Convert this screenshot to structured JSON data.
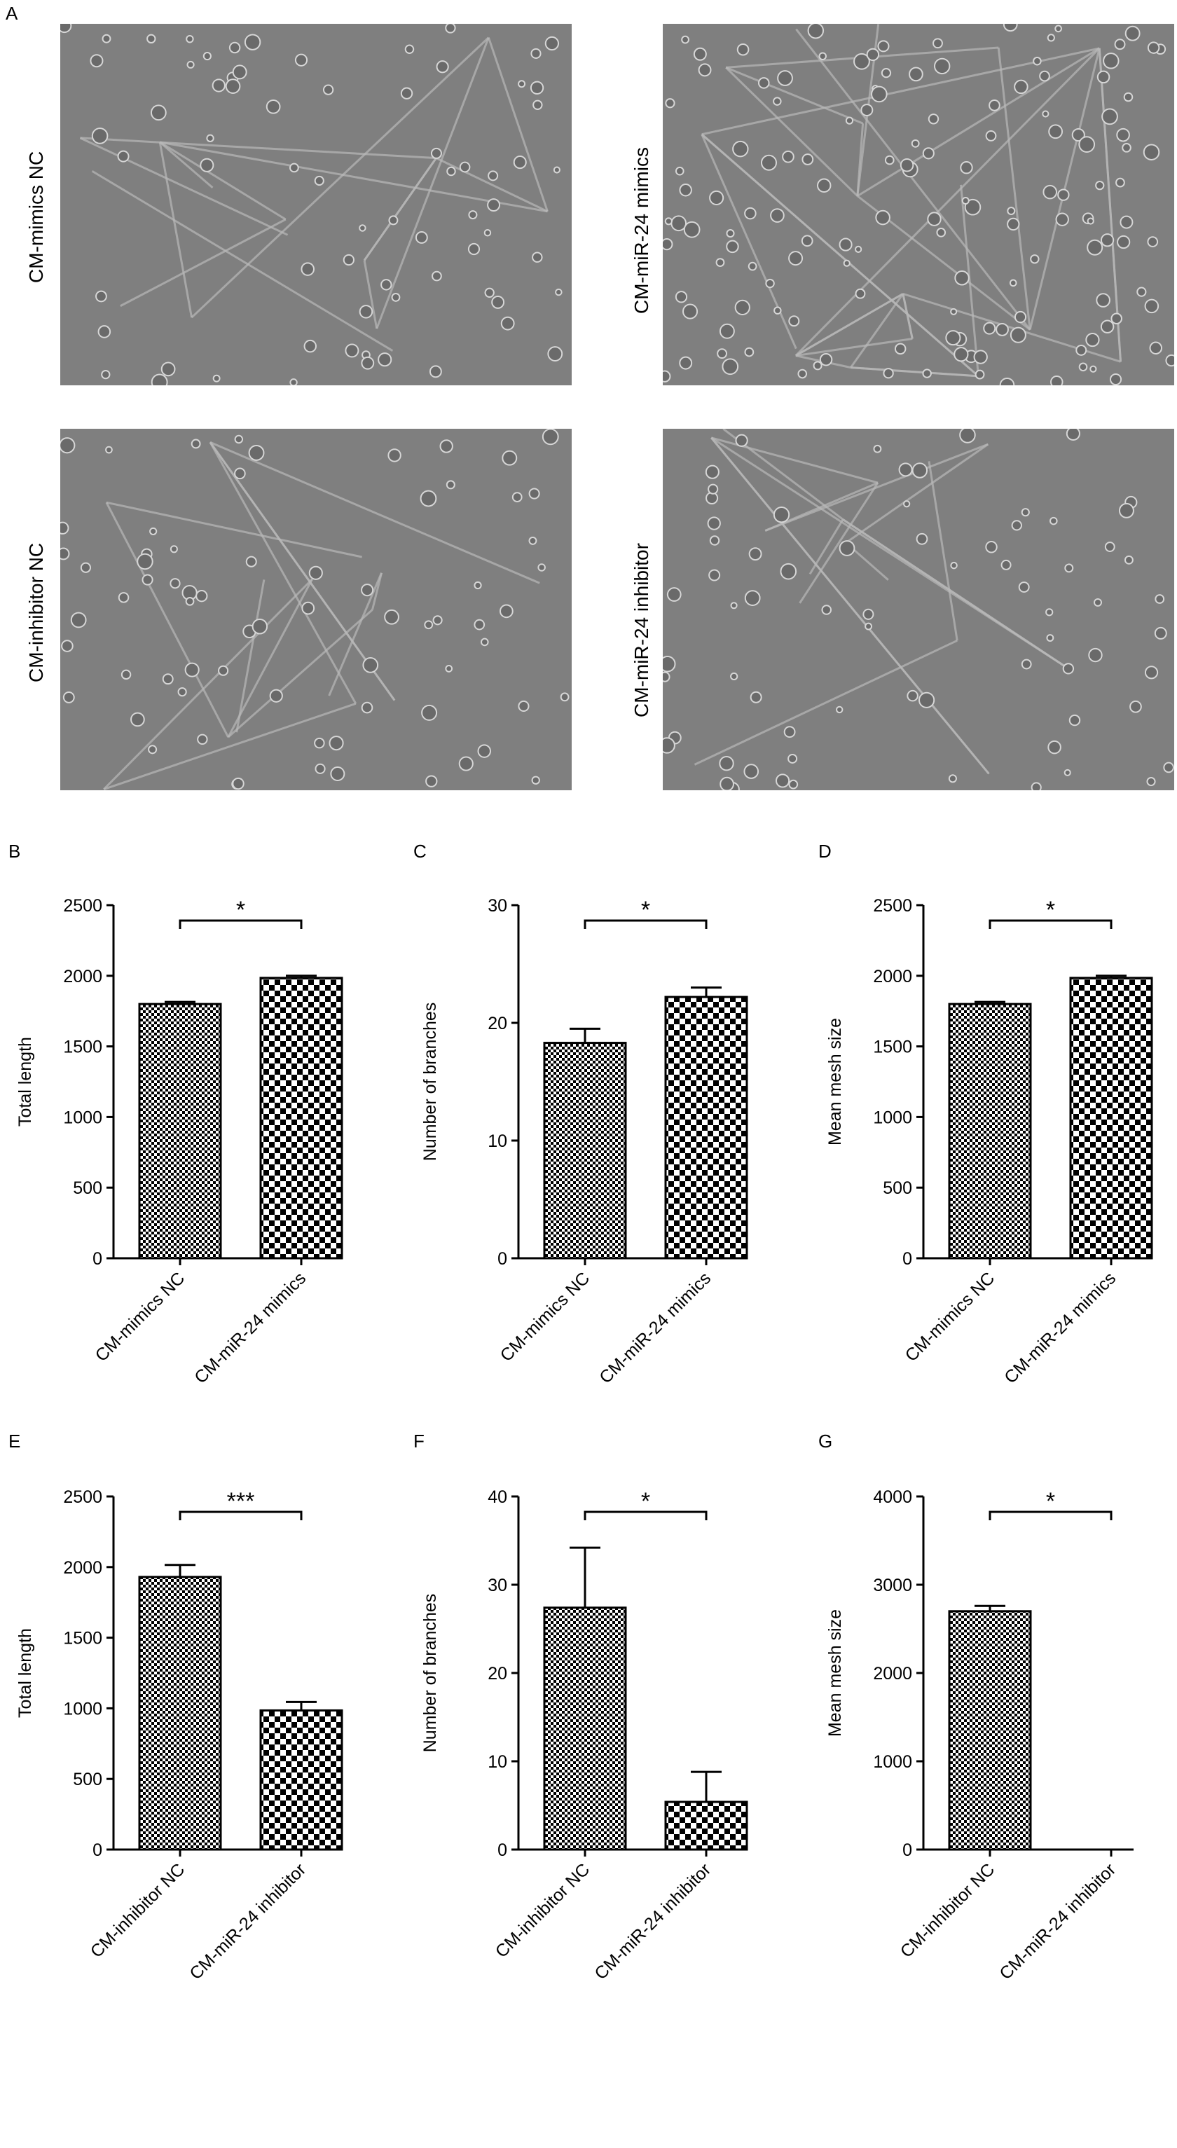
{
  "panel_letters": [
    "A",
    "B",
    "C",
    "D",
    "E",
    "F",
    "G"
  ],
  "micrographs": [
    {
      "label": "CM-mimics NC"
    },
    {
      "label": "CM-miR-24 mimics"
    },
    {
      "label": "CM-inhibitor NC"
    },
    {
      "label": "CM-miR-24 inhibitor"
    }
  ],
  "chart_data": [
    {
      "panel": "B",
      "type": "bar",
      "ylabel": "Total length",
      "ylim": [
        0,
        2500
      ],
      "yticks": [
        0,
        500,
        1000,
        1500,
        2000,
        2500
      ],
      "categories": [
        "CM-mimics NC",
        "CM-miR-24 mimics"
      ],
      "values": [
        1800,
        1985
      ],
      "errors": [
        15,
        15
      ],
      "significance": "*"
    },
    {
      "panel": "C",
      "type": "bar",
      "ylabel": "Number of branches",
      "ylim": [
        0,
        30
      ],
      "yticks": [
        0,
        10,
        20,
        30
      ],
      "categories": [
        "CM-mimics NC",
        "CM-miR-24 mimics"
      ],
      "values": [
        18.3,
        22.2
      ],
      "errors": [
        1.2,
        0.8
      ],
      "significance": "*"
    },
    {
      "panel": "D",
      "type": "bar",
      "ylabel": "Mean mesh size",
      "ylim": [
        0,
        2500
      ],
      "yticks": [
        0,
        500,
        1000,
        1500,
        2000,
        2500
      ],
      "categories": [
        "CM-mimics NC",
        "CM-miR-24 mimics"
      ],
      "values": [
        1800,
        1985
      ],
      "errors": [
        15,
        15
      ],
      "significance": "*"
    },
    {
      "panel": "E",
      "type": "bar",
      "ylabel": "Total length",
      "ylim": [
        0,
        2500
      ],
      "yticks": [
        0,
        500,
        1000,
        1500,
        2000,
        2500
      ],
      "categories": [
        "CM-inhibitor NC",
        "CM-miR-24 inhibitor"
      ],
      "values": [
        1930,
        985
      ],
      "errors": [
        85,
        60
      ],
      "significance": "***"
    },
    {
      "panel": "F",
      "type": "bar",
      "ylabel": "Number of branches",
      "ylim": [
        0,
        40
      ],
      "yticks": [
        0,
        10,
        20,
        30,
        40
      ],
      "categories": [
        "CM-inhibitor NC",
        "CM-miR-24 inhibitor"
      ],
      "values": [
        27.4,
        5.4
      ],
      "errors": [
        6.8,
        3.4
      ],
      "significance": "*"
    },
    {
      "panel": "G",
      "type": "bar",
      "ylabel": "Mean mesh size",
      "ylim": [
        0,
        4000
      ],
      "yticks": [
        0,
        1000,
        2000,
        3000,
        4000
      ],
      "categories": [
        "CM-inhibitor NC",
        "CM-miR-24 inhibitor"
      ],
      "values": [
        2700,
        0
      ],
      "errors": [
        60,
        0
      ],
      "significance": "*"
    }
  ]
}
